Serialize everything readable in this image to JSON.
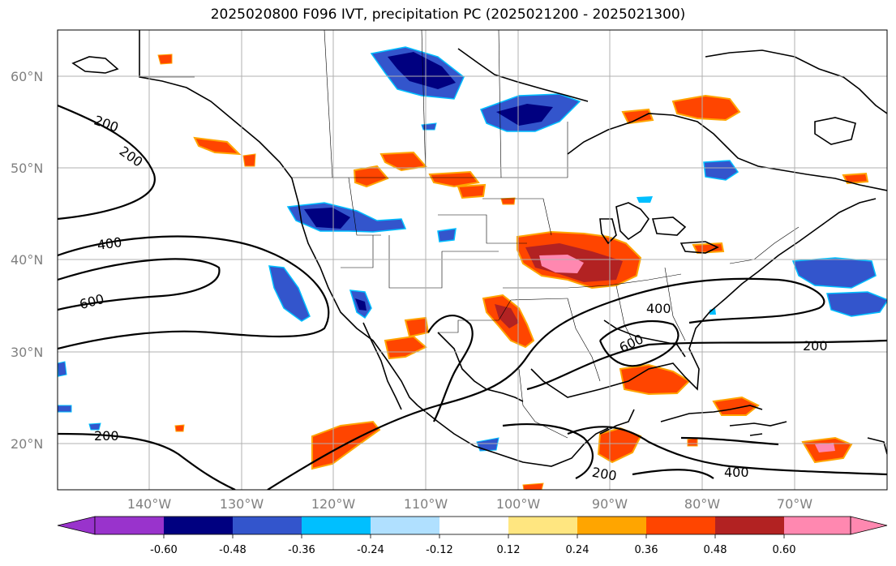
{
  "title": "2025020800 F096 IVT, precipitation PC (2025021200 - 2025021300)",
  "lat_labels": [
    "60°N",
    "50°N",
    "40°N",
    "30°N",
    "20°N"
  ],
  "lon_labels": [
    "140°W",
    "130°W",
    "120°W",
    "110°W",
    "100°W",
    "90°W",
    "80°W",
    "70°W"
  ],
  "map_extent": {
    "lon": [
      -150,
      -59
    ],
    "lat": [
      15,
      65
    ]
  },
  "ivt_contour_labels": [
    "200",
    "200",
    "400",
    "600",
    "400",
    "600",
    "200",
    "200",
    "200",
    "400"
  ],
  "colorbar": {
    "ticks": [
      "-0.60",
      "-0.48",
      "-0.36",
      "-0.24",
      "-0.12",
      "0.12",
      "0.24",
      "0.36",
      "0.48",
      "0.60"
    ],
    "colors": [
      "#9933cc",
      "#000080",
      "#3355cc",
      "#00bfff",
      "#b0e0ff",
      "#ffffff",
      "#ffe680",
      "#ffa500",
      "#ff4500",
      "#b22222",
      "#ff88b0"
    ]
  }
}
